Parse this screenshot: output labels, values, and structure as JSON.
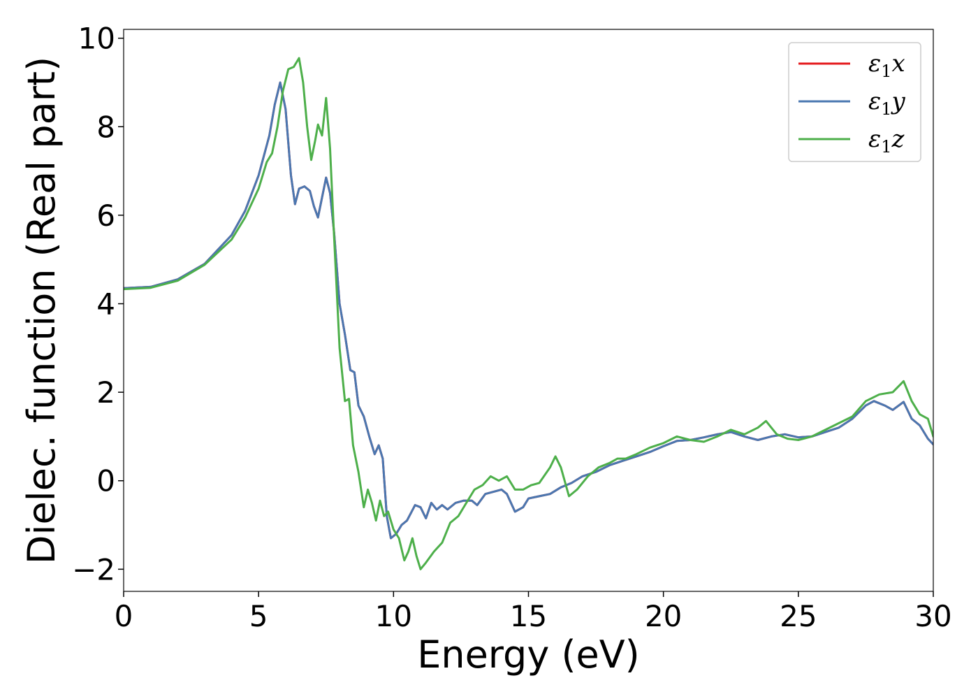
{
  "chart_data": {
    "type": "line",
    "title": "",
    "xlabel": "Energy (eV)",
    "ylabel": "Dielec. function (Real part)",
    "xlim": [
      0,
      30
    ],
    "ylim": [
      -2.5,
      10.2
    ],
    "xticks": [
      0,
      5,
      10,
      15,
      20,
      25,
      30
    ],
    "xtick_labels": [
      "0",
      "5",
      "10",
      "15",
      "20",
      "25",
      "30"
    ],
    "yticks": [
      -2,
      0,
      2,
      4,
      6,
      8,
      10
    ],
    "ytick_labels": [
      "−2",
      "0",
      "2",
      "4",
      "6",
      "8",
      "10"
    ],
    "grid": false,
    "legend_position": "top-right",
    "series": [
      {
        "name": "ε1x",
        "label_main": "ε",
        "label_sub": "1",
        "label_tail": "x",
        "color": "#e41a1c",
        "points": [
          [
            0,
            4.35
          ],
          [
            1,
            4.38
          ],
          [
            2,
            4.55
          ],
          [
            3,
            4.9
          ],
          [
            4,
            5.55
          ],
          [
            4.5,
            6.1
          ],
          [
            5,
            6.9
          ],
          [
            5.4,
            7.8
          ],
          [
            5.6,
            8.5
          ],
          [
            5.8,
            9.0
          ],
          [
            6.0,
            8.4
          ],
          [
            6.2,
            6.9
          ],
          [
            6.35,
            6.25
          ],
          [
            6.5,
            6.6
          ],
          [
            6.7,
            6.65
          ],
          [
            6.9,
            6.55
          ],
          [
            7.05,
            6.2
          ],
          [
            7.2,
            5.95
          ],
          [
            7.35,
            6.4
          ],
          [
            7.5,
            6.85
          ],
          [
            7.65,
            6.5
          ],
          [
            7.8,
            5.6
          ],
          [
            8.0,
            4.0
          ],
          [
            8.2,
            3.3
          ],
          [
            8.4,
            2.5
          ],
          [
            8.55,
            2.45
          ],
          [
            8.7,
            1.7
          ],
          [
            8.9,
            1.45
          ],
          [
            9.1,
            1.0
          ],
          [
            9.3,
            0.6
          ],
          [
            9.45,
            0.8
          ],
          [
            9.6,
            0.5
          ],
          [
            9.75,
            -0.8
          ],
          [
            9.9,
            -1.3
          ],
          [
            10.1,
            -1.2
          ],
          [
            10.3,
            -1.0
          ],
          [
            10.5,
            -0.9
          ],
          [
            10.8,
            -0.55
          ],
          [
            11.0,
            -0.6
          ],
          [
            11.2,
            -0.85
          ],
          [
            11.4,
            -0.5
          ],
          [
            11.6,
            -0.65
          ],
          [
            11.8,
            -0.55
          ],
          [
            12.0,
            -0.65
          ],
          [
            12.3,
            -0.5
          ],
          [
            12.6,
            -0.45
          ],
          [
            12.9,
            -0.45
          ],
          [
            13.1,
            -0.55
          ],
          [
            13.4,
            -0.3
          ],
          [
            13.7,
            -0.25
          ],
          [
            14.0,
            -0.2
          ],
          [
            14.2,
            -0.3
          ],
          [
            14.5,
            -0.7
          ],
          [
            14.8,
            -0.6
          ],
          [
            15.0,
            -0.4
          ],
          [
            15.4,
            -0.35
          ],
          [
            15.8,
            -0.3
          ],
          [
            16.2,
            -0.15
          ],
          [
            16.6,
            -0.05
          ],
          [
            17.0,
            0.1
          ],
          [
            17.5,
            0.2
          ],
          [
            18.0,
            0.35
          ],
          [
            18.5,
            0.45
          ],
          [
            19.0,
            0.55
          ],
          [
            19.5,
            0.65
          ],
          [
            20.0,
            0.78
          ],
          [
            20.5,
            0.9
          ],
          [
            21.0,
            0.92
          ],
          [
            21.5,
            0.98
          ],
          [
            22.0,
            1.05
          ],
          [
            22.5,
            1.1
          ],
          [
            23.0,
            1.0
          ],
          [
            23.5,
            0.92
          ],
          [
            24.0,
            1.0
          ],
          [
            24.5,
            1.05
          ],
          [
            25.0,
            0.98
          ],
          [
            25.5,
            1.0
          ],
          [
            26.0,
            1.1
          ],
          [
            26.5,
            1.2
          ],
          [
            27.0,
            1.4
          ],
          [
            27.5,
            1.7
          ],
          [
            27.8,
            1.8
          ],
          [
            28.2,
            1.7
          ],
          [
            28.5,
            1.6
          ],
          [
            28.9,
            1.78
          ],
          [
            29.2,
            1.4
          ],
          [
            29.5,
            1.25
          ],
          [
            29.8,
            0.95
          ],
          [
            30.0,
            0.82
          ]
        ]
      },
      {
        "name": "ε1y",
        "label_main": "ε",
        "label_sub": "1",
        "label_tail": "y",
        "color": "#4a77b0",
        "points": [
          [
            0,
            4.35
          ],
          [
            1,
            4.38
          ],
          [
            2,
            4.55
          ],
          [
            3,
            4.9
          ],
          [
            4,
            5.55
          ],
          [
            4.5,
            6.1
          ],
          [
            5,
            6.9
          ],
          [
            5.4,
            7.8
          ],
          [
            5.6,
            8.5
          ],
          [
            5.8,
            9.0
          ],
          [
            6.0,
            8.4
          ],
          [
            6.2,
            6.9
          ],
          [
            6.35,
            6.25
          ],
          [
            6.5,
            6.6
          ],
          [
            6.7,
            6.65
          ],
          [
            6.9,
            6.55
          ],
          [
            7.05,
            6.2
          ],
          [
            7.2,
            5.95
          ],
          [
            7.35,
            6.4
          ],
          [
            7.5,
            6.85
          ],
          [
            7.65,
            6.5
          ],
          [
            7.8,
            5.6
          ],
          [
            8.0,
            4.0
          ],
          [
            8.2,
            3.3
          ],
          [
            8.4,
            2.5
          ],
          [
            8.55,
            2.45
          ],
          [
            8.7,
            1.7
          ],
          [
            8.9,
            1.45
          ],
          [
            9.1,
            1.0
          ],
          [
            9.3,
            0.6
          ],
          [
            9.45,
            0.8
          ],
          [
            9.6,
            0.5
          ],
          [
            9.75,
            -0.8
          ],
          [
            9.9,
            -1.3
          ],
          [
            10.1,
            -1.2
          ],
          [
            10.3,
            -1.0
          ],
          [
            10.5,
            -0.9
          ],
          [
            10.8,
            -0.55
          ],
          [
            11.0,
            -0.6
          ],
          [
            11.2,
            -0.85
          ],
          [
            11.4,
            -0.5
          ],
          [
            11.6,
            -0.65
          ],
          [
            11.8,
            -0.55
          ],
          [
            12.0,
            -0.65
          ],
          [
            12.3,
            -0.5
          ],
          [
            12.6,
            -0.45
          ],
          [
            12.9,
            -0.45
          ],
          [
            13.1,
            -0.55
          ],
          [
            13.4,
            -0.3
          ],
          [
            13.7,
            -0.25
          ],
          [
            14.0,
            -0.2
          ],
          [
            14.2,
            -0.3
          ],
          [
            14.5,
            -0.7
          ],
          [
            14.8,
            -0.6
          ],
          [
            15.0,
            -0.4
          ],
          [
            15.4,
            -0.35
          ],
          [
            15.8,
            -0.3
          ],
          [
            16.2,
            -0.15
          ],
          [
            16.6,
            -0.05
          ],
          [
            17.0,
            0.1
          ],
          [
            17.5,
            0.2
          ],
          [
            18.0,
            0.35
          ],
          [
            18.5,
            0.45
          ],
          [
            19.0,
            0.55
          ],
          [
            19.5,
            0.65
          ],
          [
            20.0,
            0.78
          ],
          [
            20.5,
            0.9
          ],
          [
            21.0,
            0.92
          ],
          [
            21.5,
            0.98
          ],
          [
            22.0,
            1.05
          ],
          [
            22.5,
            1.1
          ],
          [
            23.0,
            1.0
          ],
          [
            23.5,
            0.92
          ],
          [
            24.0,
            1.0
          ],
          [
            24.5,
            1.05
          ],
          [
            25.0,
            0.98
          ],
          [
            25.5,
            1.0
          ],
          [
            26.0,
            1.1
          ],
          [
            26.5,
            1.2
          ],
          [
            27.0,
            1.4
          ],
          [
            27.5,
            1.7
          ],
          [
            27.8,
            1.8
          ],
          [
            28.2,
            1.7
          ],
          [
            28.5,
            1.6
          ],
          [
            28.9,
            1.78
          ],
          [
            29.2,
            1.4
          ],
          [
            29.5,
            1.25
          ],
          [
            29.8,
            0.95
          ],
          [
            30.0,
            0.82
          ]
        ]
      },
      {
        "name": "ε1z",
        "label_main": "ε",
        "label_sub": "1",
        "label_tail": "z",
        "color": "#4daf4a",
        "points": [
          [
            0,
            4.33
          ],
          [
            1,
            4.36
          ],
          [
            2,
            4.52
          ],
          [
            3,
            4.88
          ],
          [
            4,
            5.45
          ],
          [
            4.5,
            5.95
          ],
          [
            5,
            6.6
          ],
          [
            5.3,
            7.2
          ],
          [
            5.5,
            7.4
          ],
          [
            5.7,
            8.0
          ],
          [
            5.9,
            8.8
          ],
          [
            6.1,
            9.3
          ],
          [
            6.3,
            9.35
          ],
          [
            6.5,
            9.55
          ],
          [
            6.65,
            9.0
          ],
          [
            6.8,
            8.0
          ],
          [
            6.95,
            7.25
          ],
          [
            7.1,
            7.7
          ],
          [
            7.2,
            8.05
          ],
          [
            7.35,
            7.8
          ],
          [
            7.5,
            8.65
          ],
          [
            7.65,
            7.5
          ],
          [
            7.8,
            5.5
          ],
          [
            8.0,
            3.0
          ],
          [
            8.2,
            1.8
          ],
          [
            8.35,
            1.85
          ],
          [
            8.5,
            0.8
          ],
          [
            8.7,
            0.2
          ],
          [
            8.9,
            -0.6
          ],
          [
            9.05,
            -0.2
          ],
          [
            9.2,
            -0.5
          ],
          [
            9.35,
            -0.9
          ],
          [
            9.5,
            -0.45
          ],
          [
            9.65,
            -0.8
          ],
          [
            9.8,
            -0.7
          ],
          [
            10.0,
            -1.1
          ],
          [
            10.2,
            -1.3
          ],
          [
            10.4,
            -1.8
          ],
          [
            10.55,
            -1.6
          ],
          [
            10.7,
            -1.3
          ],
          [
            10.85,
            -1.7
          ],
          [
            11.0,
            -2.0
          ],
          [
            11.2,
            -1.85
          ],
          [
            11.5,
            -1.6
          ],
          [
            11.8,
            -1.4
          ],
          [
            12.1,
            -0.95
          ],
          [
            12.4,
            -0.8
          ],
          [
            12.7,
            -0.5
          ],
          [
            13.0,
            -0.2
          ],
          [
            13.3,
            -0.1
          ],
          [
            13.6,
            0.1
          ],
          [
            13.9,
            0.0
          ],
          [
            14.2,
            0.1
          ],
          [
            14.5,
            -0.2
          ],
          [
            14.8,
            -0.2
          ],
          [
            15.1,
            -0.1
          ],
          [
            15.4,
            -0.05
          ],
          [
            15.8,
            0.3
          ],
          [
            16.0,
            0.55
          ],
          [
            16.2,
            0.3
          ],
          [
            16.5,
            -0.35
          ],
          [
            16.8,
            -0.2
          ],
          [
            17.2,
            0.1
          ],
          [
            17.6,
            0.3
          ],
          [
            18.0,
            0.4
          ],
          [
            18.3,
            0.5
          ],
          [
            18.6,
            0.5
          ],
          [
            19.0,
            0.6
          ],
          [
            19.5,
            0.75
          ],
          [
            20.0,
            0.85
          ],
          [
            20.5,
            1.0
          ],
          [
            21.0,
            0.92
          ],
          [
            21.5,
            0.88
          ],
          [
            22.0,
            1.0
          ],
          [
            22.5,
            1.15
          ],
          [
            23.0,
            1.05
          ],
          [
            23.5,
            1.2
          ],
          [
            23.8,
            1.35
          ],
          [
            24.2,
            1.05
          ],
          [
            24.6,
            0.95
          ],
          [
            25.0,
            0.92
          ],
          [
            25.5,
            1.0
          ],
          [
            26.0,
            1.15
          ],
          [
            26.5,
            1.3
          ],
          [
            27.0,
            1.45
          ],
          [
            27.5,
            1.8
          ],
          [
            28.0,
            1.95
          ],
          [
            28.5,
            2.0
          ],
          [
            28.9,
            2.25
          ],
          [
            29.2,
            1.8
          ],
          [
            29.5,
            1.5
          ],
          [
            29.8,
            1.4
          ],
          [
            30.0,
            1.0
          ]
        ]
      }
    ]
  }
}
